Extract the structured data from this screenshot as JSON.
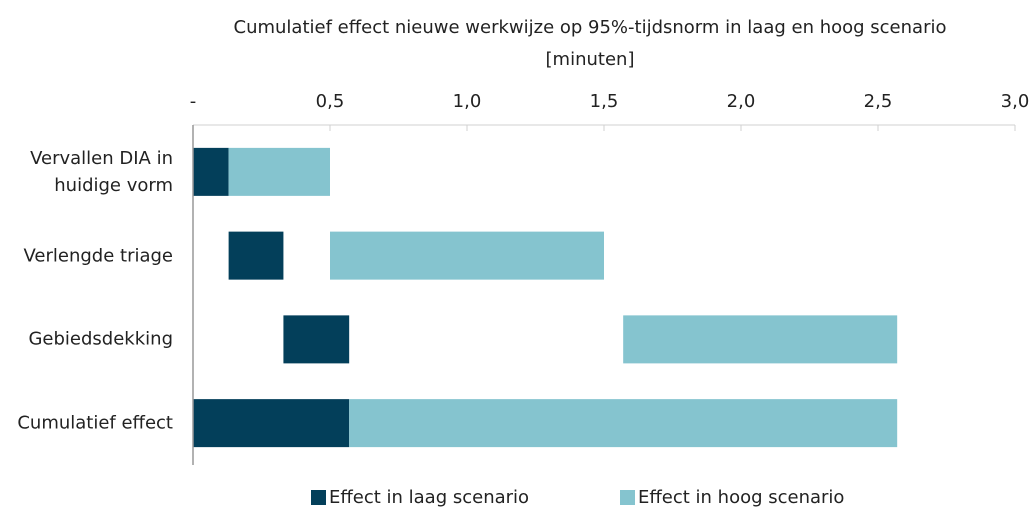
{
  "chart_data": {
    "type": "floating_bar",
    "orientation": "horizontal",
    "title": "Cumulatief effect nieuwe werkwijze op 95%-tijdsnorm in laag en hoog scenario",
    "xlabel": "[minuten]",
    "categories": [
      "Vervallen DIA in huidige vorm",
      "Verlengde triage",
      "Gebiedsdekking",
      "Cumulatief effect"
    ],
    "series": [
      {
        "name": "Effect in laag scenario",
        "color": "#033f5a",
        "values": [
          [
            0,
            0.13
          ],
          [
            0.13,
            0.33
          ],
          [
            0.33,
            0.57
          ],
          [
            0,
            0.57
          ]
        ]
      },
      {
        "name": "Effect in hoog scenario",
        "color": "#85c4cf",
        "values": [
          [
            0.13,
            0.5
          ],
          [
            0.5,
            1.5
          ],
          [
            1.57,
            2.57
          ],
          [
            0.57,
            2.57
          ]
        ]
      }
    ],
    "xlim": [
      0,
      3
    ],
    "xticks": [
      {
        "value": 0,
        "label": "-"
      },
      {
        "value": 0.5,
        "label": "0,5"
      },
      {
        "value": 1,
        "label": "1,0"
      },
      {
        "value": 1.5,
        "label": "1,5"
      },
      {
        "value": 2,
        "label": "2,0"
      },
      {
        "value": 2.5,
        "label": "2,5"
      },
      {
        "value": 3,
        "label": "3,0"
      }
    ],
    "legend": "bottom"
  }
}
